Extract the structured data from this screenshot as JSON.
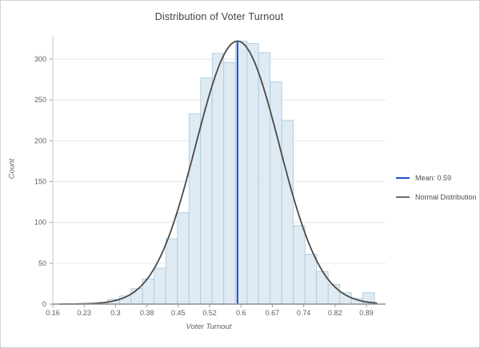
{
  "header": {
    "title": "Distribution of Voter Turnout"
  },
  "chart_data": {
    "type": "bar",
    "subtype": "histogram-with-normal-curve",
    "title": "Distribution of Voter Turnout",
    "xlabel": "Voter Turnout",
    "ylabel": "Count",
    "x_tick_labels": [
      "0.16",
      "0.23",
      "0.3",
      "0.38",
      "0.45",
      "0.52",
      "0.6",
      "0.67",
      "0.74",
      "0.82",
      "0.89"
    ],
    "y_tick_labels": [
      "0",
      "50",
      "100",
      "150",
      "200",
      "250",
      "300"
    ],
    "y_tick_values": [
      0,
      50,
      100,
      150,
      200,
      250,
      300
    ],
    "xlim": [
      0.16,
      0.916
    ],
    "ylim": [
      0,
      327
    ],
    "grid": "horizontal",
    "bin_width": 0.027,
    "bins": [
      {
        "x": 0.288,
        "count": 6
      },
      {
        "x": 0.315,
        "count": 10
      },
      {
        "x": 0.342,
        "count": 19
      },
      {
        "x": 0.369,
        "count": 31
      },
      {
        "x": 0.396,
        "count": 44
      },
      {
        "x": 0.423,
        "count": 80
      },
      {
        "x": 0.45,
        "count": 112
      },
      {
        "x": 0.477,
        "count": 233
      },
      {
        "x": 0.504,
        "count": 277
      },
      {
        "x": 0.531,
        "count": 307
      },
      {
        "x": 0.558,
        "count": 296
      },
      {
        "x": 0.585,
        "count": 322
      },
      {
        "x": 0.612,
        "count": 319
      },
      {
        "x": 0.639,
        "count": 308
      },
      {
        "x": 0.666,
        "count": 272
      },
      {
        "x": 0.693,
        "count": 225
      },
      {
        "x": 0.72,
        "count": 96
      },
      {
        "x": 0.747,
        "count": 61
      },
      {
        "x": 0.774,
        "count": 40
      },
      {
        "x": 0.801,
        "count": 24
      },
      {
        "x": 0.828,
        "count": 14
      },
      {
        "x": 0.855,
        "count": 7
      },
      {
        "x": 0.882,
        "count": 14
      }
    ],
    "mean": {
      "value": 0.59,
      "label": "Mean: 0.59"
    },
    "normal_curve": {
      "mean": 0.59,
      "sd": 0.097,
      "peak": 322,
      "label": "Normal Distribution"
    },
    "legend": {
      "position": "right",
      "items": [
        {
          "label": "Mean: 0.59",
          "color": "#2050d0"
        },
        {
          "label": "Normal Distribution",
          "color": "#6e6e6e"
        }
      ]
    },
    "colors": {
      "bar_fill": "#dbe8f2",
      "bar_stroke": "#a8c8dc",
      "curve": "#4a4a4a",
      "mean_line": "#2050d0",
      "gridline": "#e7e7e7",
      "x_axis": "#8f8f8f",
      "y_axis": "#c4c4c4",
      "tick_text": "#5f5f5f"
    }
  }
}
